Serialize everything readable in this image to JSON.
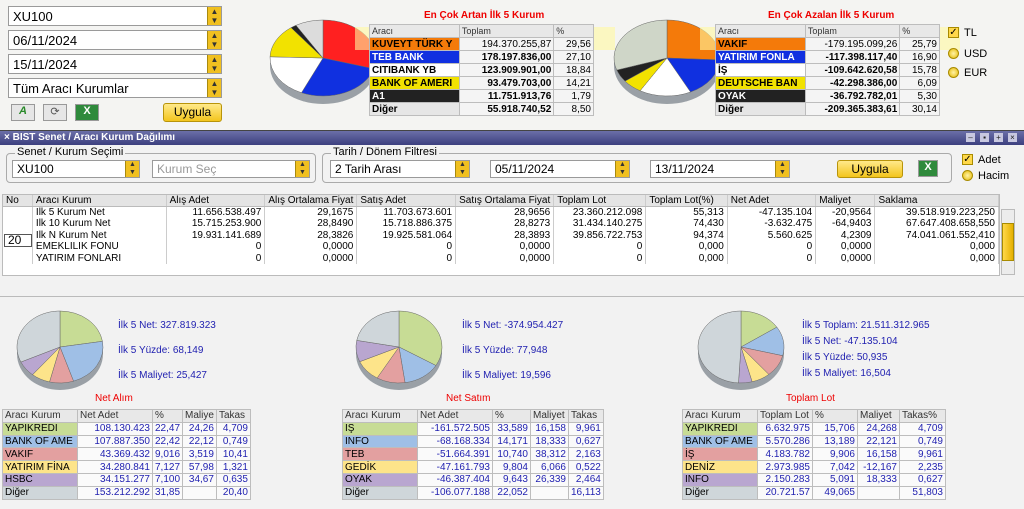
{
  "top": {
    "symbol": "XU100",
    "date_from": "06/11/2024",
    "date_to": "15/11/2024",
    "broker": "Tüm Aracı Kurumlar",
    "apply": "Uygula",
    "btn1": "A",
    "btn2": "⟳",
    "btn3": "X"
  },
  "gainers": {
    "title": "En Çok Artan İlk 5 Kurum",
    "headers": [
      "Aracı",
      "Toplam",
      "%"
    ],
    "rows": [
      [
        "KUVEYT TÜRK Y",
        "194.370.255,87",
        "29,56"
      ],
      [
        "TEB BANK",
        "178.197.836,00",
        "27,10"
      ],
      [
        "CITIBANK YB",
        "123.909.901,00",
        "18,84"
      ],
      [
        "BANK OF AMERI",
        "93.479.703,00",
        "14,21"
      ],
      [
        "A1",
        "11.751.913,76",
        "1,79"
      ],
      [
        "Diğer",
        "55.918.740,52",
        "8,50"
      ]
    ]
  },
  "losers": {
    "title": "En Çok Azalan İlk 5 Kurum",
    "headers": [
      "Aracı",
      "Toplam",
      "%"
    ],
    "rows": [
      [
        "VAKIF",
        "-179.195.099,26",
        "25,79"
      ],
      [
        "YATIRIM FONLA",
        "-117.398.117,40",
        "16,90"
      ],
      [
        "İŞ",
        "-109.642.620,58",
        "15,78"
      ],
      [
        "DEUTSCHE BAN",
        "-42.298.386,00",
        "6,09"
      ],
      [
        "OYAK",
        "-36.792.782,01",
        "5,30"
      ],
      [
        "Diğer",
        "-209.365.383,61",
        "30,14"
      ]
    ]
  },
  "currency": {
    "tl": "TL",
    "usd": "USD",
    "eur": "EUR"
  },
  "window": {
    "title": "BIST Senet / Aracı Kurum Dağılımı",
    "group1": "Senet / Kurum Seçimi",
    "symbol": "XU100",
    "broker_placeholder": "Kurum Seç",
    "group2": "Tarih / Dönem Filtresi",
    "period": "2 Tarih Arası",
    "date1": "05/11/2024",
    "date2": "13/11/2024",
    "apply": "Uygula",
    "adet": "Adet",
    "hacim": "Hacim",
    "n_value": "20"
  },
  "grid": {
    "headers": [
      "No",
      "Aracı Kurum",
      "Alış Adet",
      "Alış Ortalama Fiyat",
      "Satış Adet",
      "Satış Ortalama Fiyat",
      "Toplam Lot",
      "Toplam Lot(%)",
      "Net Adet",
      "Maliyet",
      "Saklama"
    ],
    "rows": [
      [
        "",
        "İlk 5 Kurum Net",
        "11.656.538.497",
        "29,1675",
        "11.703.673.601",
        "28,9656",
        "23.360.212.098",
        "55,313",
        "-47.135.104",
        "-20,9564",
        "39.518.919.223,250"
      ],
      [
        "",
        "İlk 10 Kurum Net",
        "15.715.253.900",
        "28,8490",
        "15.718.886.375",
        "28,8273",
        "31.434.140.275",
        "74,430",
        "-3.632.475",
        "-64,9403",
        "67.647.408.658,550"
      ],
      [
        "",
        "İlk N Kurum Net",
        "19.931.141.689",
        "28,3826",
        "19.925.581.064",
        "28,3893",
        "39.856.722.753",
        "94,374",
        "5.560.625",
        "4,2309",
        "74.041.061.552,410"
      ],
      [
        "",
        "EMEKLİLİK FONU",
        "0",
        "0,0000",
        "0",
        "0,0000",
        "0",
        "0,000",
        "0",
        "0,0000",
        "0,000"
      ],
      [
        "",
        "YATIRIM FONLARI",
        "0",
        "0,0000",
        "0",
        "0,0000",
        "0",
        "0,000",
        "0",
        "0,0000",
        "0,000"
      ]
    ]
  },
  "panels": [
    {
      "stats": [
        "İlk 5 Net: 327.819.323",
        "İlk 5 Yüzde: 68,149",
        "İlk 5 Maliyet: 25,427"
      ],
      "title": "Net Alım",
      "headers": [
        "Aracı Kurum",
        "Net Adet",
        "%",
        "Maliye",
        "Takas"
      ],
      "rows": [
        [
          "YAPIKREDİ",
          "108.130.423",
          "22,47",
          "24,26",
          "4,709"
        ],
        [
          "BANK OF AME",
          "107.887.350",
          "22,42",
          "22,12",
          "0,749"
        ],
        [
          "VAKIF",
          "43.369.432",
          "9,016",
          "3,519",
          "10,41"
        ],
        [
          "YATIRIM FİNA",
          "34.280.841",
          "7,127",
          "57,98",
          "1,321"
        ],
        [
          "HSBC",
          "34.151.277",
          "7,100",
          "34,67",
          "0,635"
        ],
        [
          "Diğer",
          "153.212.292",
          "31,85",
          "",
          "20,40"
        ]
      ]
    },
    {
      "stats": [
        "İlk 5 Net: -374.954.427",
        "İlk 5 Yüzde: 77,948",
        "İlk 5 Maliyet: 19,596"
      ],
      "title": "Net Satım",
      "headers": [
        "Aracı Kurum",
        "Net Adet",
        "%",
        "Maliyet",
        "Takas"
      ],
      "rows": [
        [
          "İŞ",
          "-161.572.505",
          "33,589",
          "16,158",
          "9,961"
        ],
        [
          "İNFO",
          "-68.168.334",
          "14,171",
          "18,333",
          "0,627"
        ],
        [
          "TEB",
          "-51.664.391",
          "10,740",
          "38,312",
          "2,163"
        ],
        [
          "GEDİK",
          "-47.161.793",
          "9,804",
          "6,066",
          "0,522"
        ],
        [
          "OYAK",
          "-46.387.404",
          "9,643",
          "26,339",
          "2,464"
        ],
        [
          "Diğer",
          "-106.077.188",
          "22,052",
          "",
          "16,113"
        ]
      ]
    },
    {
      "stats": [
        "İlk 5 Toplam: 21.511.312.965",
        "İlk 5 Net: -47.135.104",
        "İlk 5 Yüzde: 50,935",
        "İlk 5 Maliyet: 16,504"
      ],
      "title": "Toplam Lot",
      "headers": [
        "Aracı Kurum",
        "Toplam Lot",
        "%",
        "Maliyet",
        "Takas%"
      ],
      "rows": [
        [
          "YAPIKREDİ",
          "6.632.975",
          "15,706",
          "24,268",
          "4,709"
        ],
        [
          "BANK OF AME",
          "5.570.286",
          "13,189",
          "22,121",
          "0,749"
        ],
        [
          "İŞ",
          "4.183.782",
          "9,906",
          "16,158",
          "9,961"
        ],
        [
          "DENİZ",
          "2.973.985",
          "7,042",
          "-12,167",
          "2,235"
        ],
        [
          "İNFO",
          "2.150.283",
          "5,091",
          "18,333",
          "0,627"
        ],
        [
          "Diğer",
          "20.721.57",
          "49,065",
          "",
          "51,803"
        ]
      ]
    }
  ],
  "colors": {
    "row": [
      "#c7dc95",
      "#9fbfe6",
      "#e3a0a0",
      "#fde48a",
      "#b9a6d0",
      "#cfd6da"
    ],
    "gain": [
      "#f47a0a",
      "#1030e0",
      "#ffffff",
      "#f2e200",
      "#222222",
      "#e6e6e6"
    ],
    "loss": [
      "#f47a0a",
      "#1030e0",
      "#ffffff",
      "#f2e200",
      "#222222",
      "#e6e6e6"
    ]
  },
  "pie_values": {
    "gain": [
      29.56,
      27.1,
      18.84,
      14.21,
      1.79,
      8.5
    ],
    "loss": [
      25.79,
      16.9,
      15.78,
      6.09,
      5.3,
      30.14
    ],
    "p1": [
      22.47,
      22.42,
      9.016,
      7.127,
      7.1,
      31.85
    ],
    "p2": [
      33.589,
      14.171,
      10.74,
      9.804,
      9.643,
      22.052
    ],
    "p3": [
      15.706,
      13.189,
      9.906,
      7.042,
      5.091,
      49.065
    ]
  }
}
